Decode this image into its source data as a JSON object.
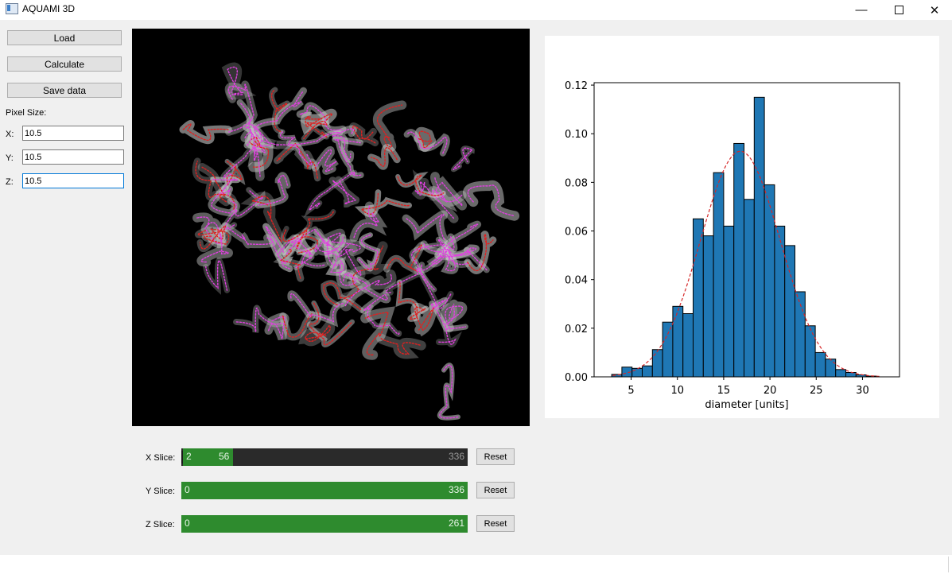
{
  "window": {
    "title": "AQUAMI 3D",
    "icon": "app-window-icon",
    "min_glyph": "—",
    "close_glyph": "✕"
  },
  "controls": {
    "load_label": "Load",
    "calculate_label": "Calculate",
    "save_label": "Save data",
    "pixel_size_label": "Pixel Size:",
    "x_label": "X:",
    "x_value": "10.5",
    "y_label": "Y:",
    "y_value": "10.5",
    "z_label": "Z:",
    "z_value": "10.5"
  },
  "sliders": [
    {
      "label": "X Slice:",
      "min": "2",
      "mid": "56",
      "max": "336",
      "reset": "Reset"
    },
    {
      "label": "Y Slice:",
      "min": "0",
      "max": "336",
      "reset": "Reset"
    },
    {
      "label": "Z Slice:",
      "min": "0",
      "max": "261",
      "reset": "Reset"
    }
  ],
  "colors": {
    "bar_fill": "#1f77b4",
    "fit_line": "#d62728",
    "slider_green": "#2e8b2e",
    "skeleton_magenta": "#e040e0",
    "skeleton_red": "#e02020"
  },
  "chart_data": {
    "type": "bar",
    "xlabel": "diameter [units]",
    "ylabel": "",
    "xlim": [
      1,
      34
    ],
    "ylim": [
      0,
      0.121
    ],
    "xticks": [
      5,
      10,
      15,
      20,
      25,
      30
    ],
    "yticks": [
      0.0,
      0.02,
      0.04,
      0.06,
      0.08,
      0.1,
      0.12
    ],
    "ytick_labels": [
      "0.00",
      "0.02",
      "0.04",
      "0.06",
      "0.08",
      "0.10",
      "0.12"
    ],
    "bin_edges": [
      2.9,
      4.0,
      5.1,
      6.2,
      7.3,
      8.4,
      9.5,
      10.6,
      11.7,
      12.8,
      13.9,
      15.0,
      16.1,
      17.2,
      18.3,
      19.4,
      20.5,
      21.6,
      22.7,
      23.8,
      24.9,
      26.0,
      27.1,
      28.2,
      29.3,
      30.4,
      31.5
    ],
    "values": [
      0.001,
      0.004,
      0.0035,
      0.0045,
      0.0112,
      0.0225,
      0.029,
      0.026,
      0.065,
      0.058,
      0.084,
      0.062,
      0.096,
      0.073,
      0.115,
      0.079,
      0.062,
      0.054,
      0.035,
      0.021,
      0.01,
      0.0073,
      0.003,
      0.0018,
      0.0008,
      0.0003
    ],
    "fit": {
      "type": "normal",
      "mean": 16.8,
      "std": 4.3,
      "xrange": [
        3,
        32
      ]
    }
  }
}
